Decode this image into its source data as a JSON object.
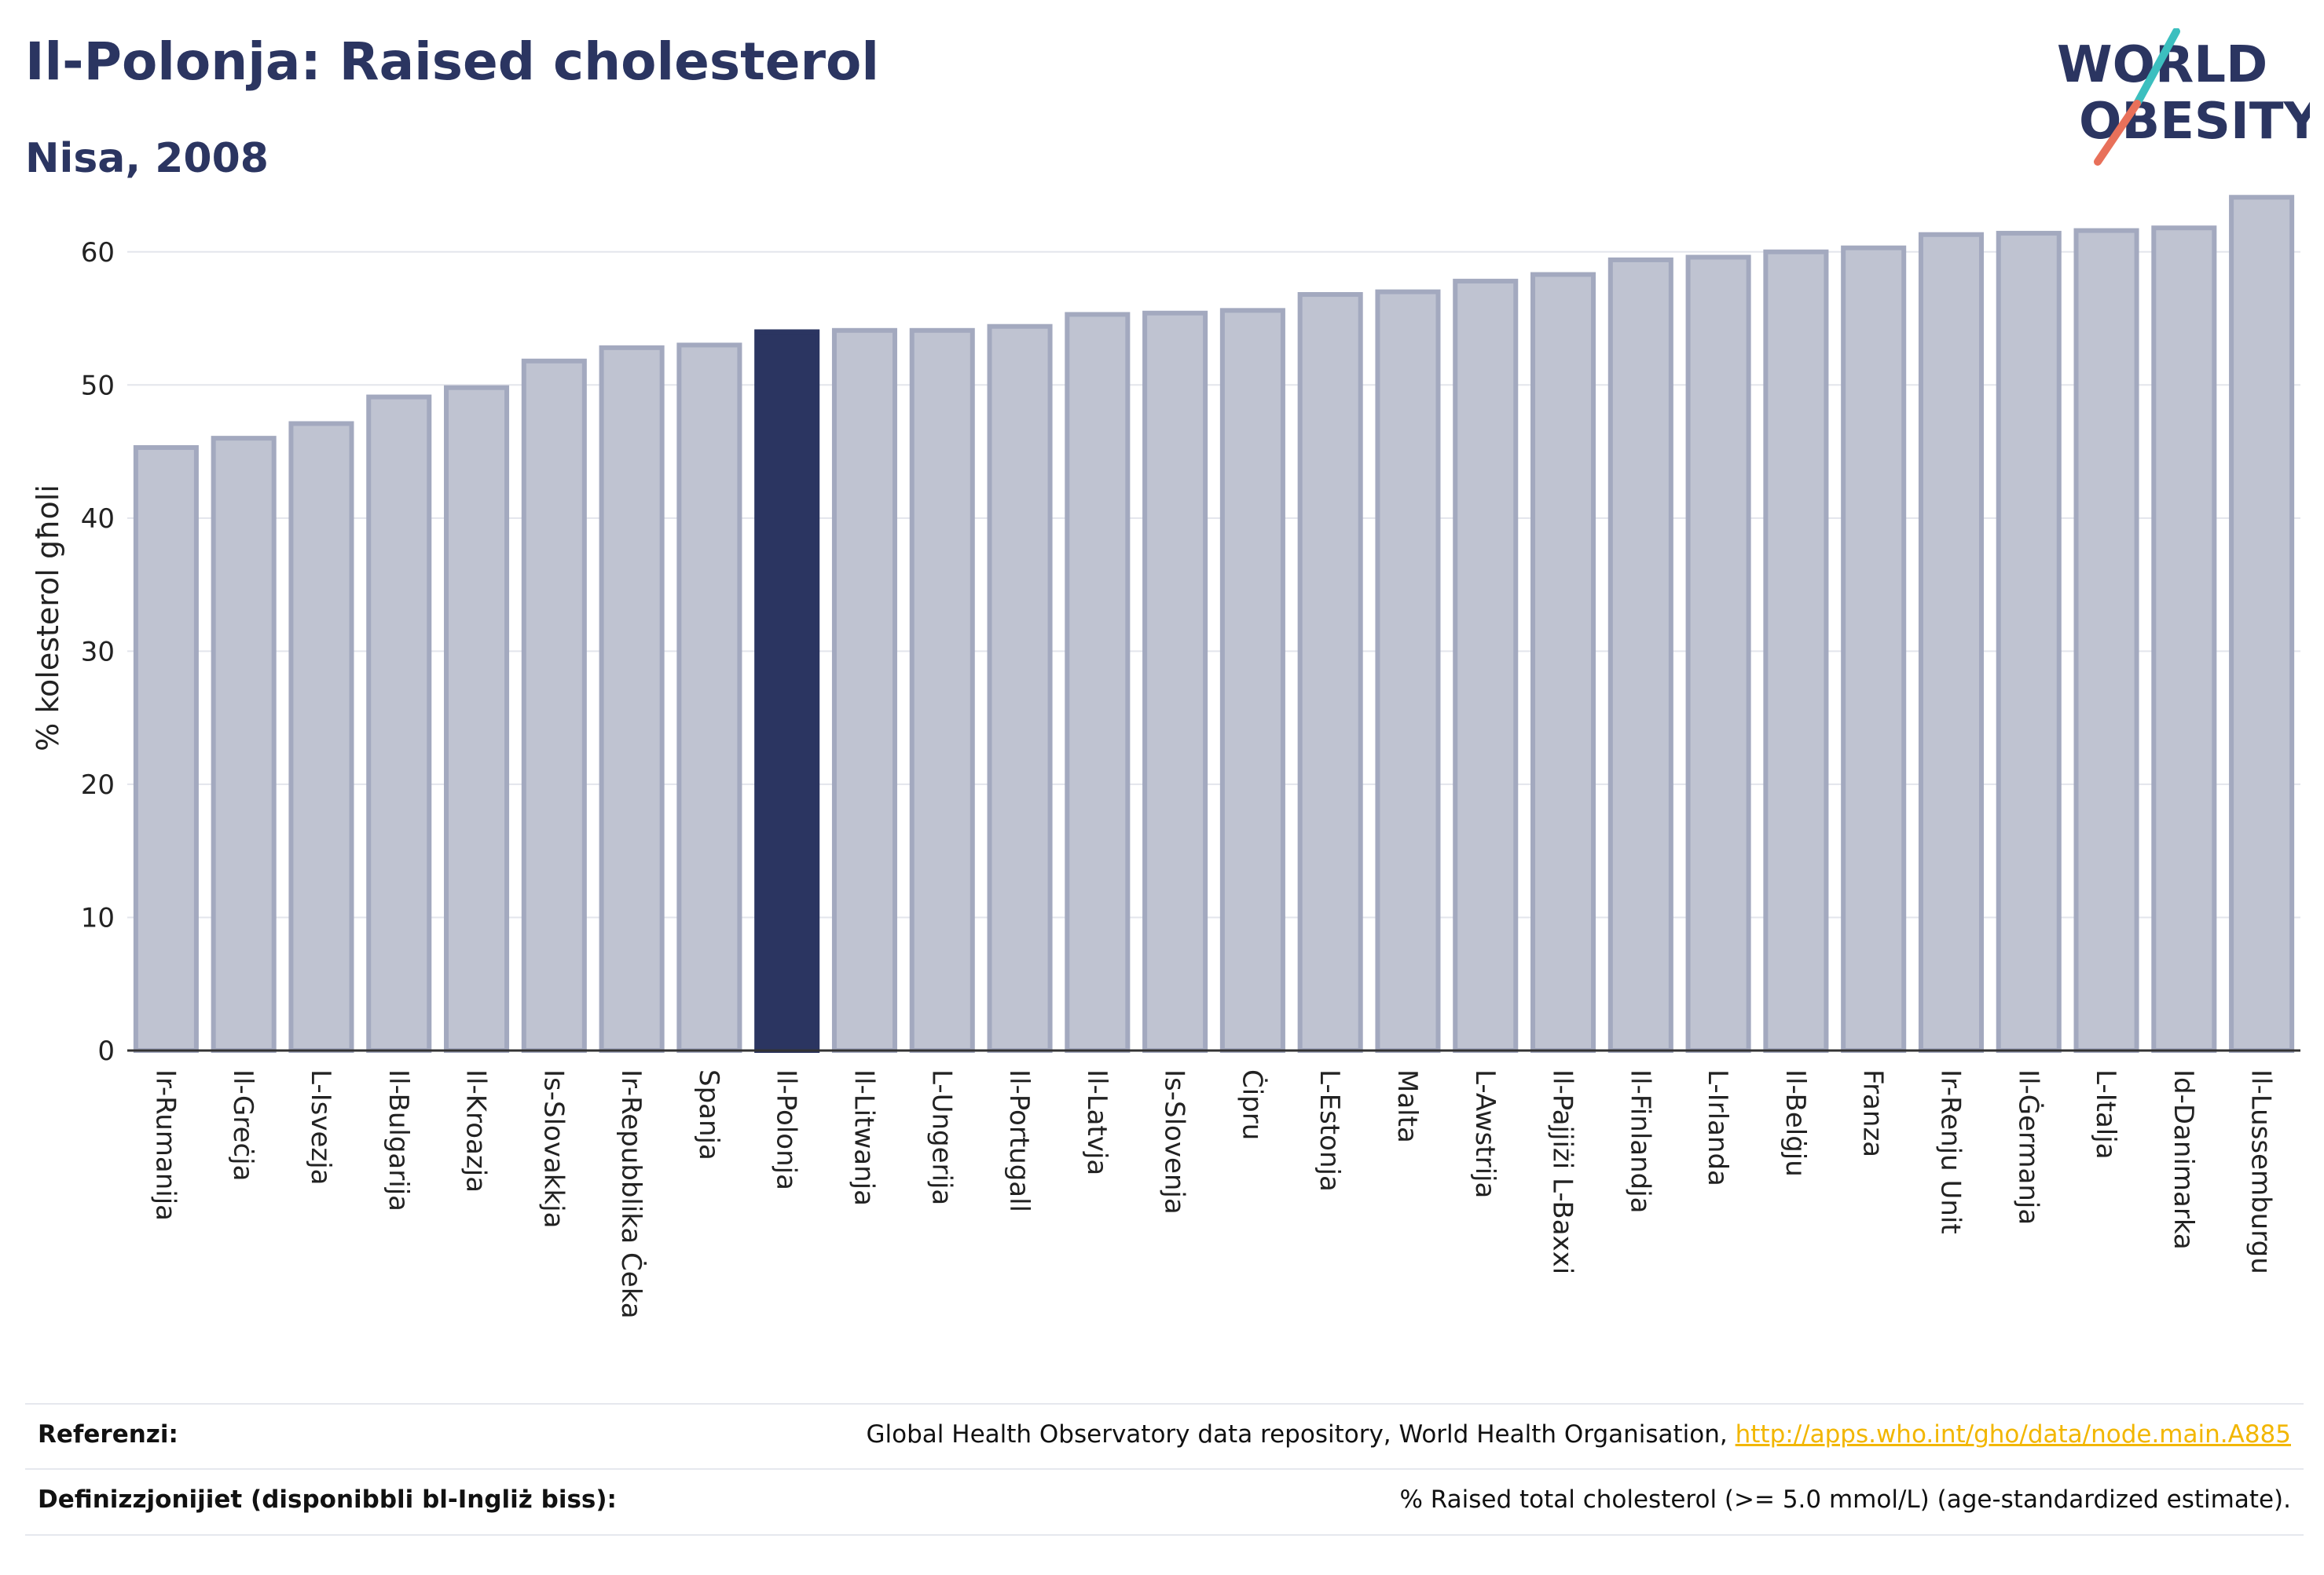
{
  "header": {
    "title": "Il-Polonja: Raised cholesterol",
    "subtitle": "Nisa, 2008"
  },
  "logo": {
    "line1": "WORLD",
    "line2": "OBESITY",
    "colors": {
      "text": "#2b3561",
      "slash_teal": "#3cbfbf",
      "slash_coral": "#e8705a"
    }
  },
  "colors": {
    "bar_default": "#bfc3d1",
    "bar_stroke": "#a3a9bf",
    "bar_highlight": "#2b3561",
    "grid": "#e3e5ec"
  },
  "chart_data": {
    "type": "bar",
    "title": "Il-Polonja: Raised cholesterol",
    "subtitle": "Nisa, 2008",
    "ylabel": "% kolesterol għoli",
    "xlabel": "",
    "ylim": [
      0,
      65
    ],
    "yticks": [
      0,
      10,
      20,
      30,
      40,
      50,
      60
    ],
    "grid": true,
    "highlight": "Il-Polonja",
    "categories": [
      "Ir-Rumanija",
      "Il-Greċja",
      "L-Isvezja",
      "Il-Bulgarija",
      "Il-Kroazja",
      "Is-Slovakkja",
      "Ir-Repubblika Ċeka",
      "Spanja",
      "Il-Polonja",
      "Il-Litwanja",
      "L-Ungerija",
      "Il-Portugall",
      "Il-Latvja",
      "Is-Slovenja",
      "Ċipru",
      "L-Estonja",
      "Malta",
      "L-Awstrija",
      "Il-Pajjiżi L-Baxxi",
      "Il-Finlandja",
      "L-Irlanda",
      "Il-Belġju",
      "Franza",
      "Ir-Renju Unit",
      "Il-Ġermanja",
      "L-Italja",
      "Id-Danimarka",
      "Il-Lussemburgu"
    ],
    "values": [
      45.3,
      46.0,
      47.1,
      49.1,
      49.8,
      51.8,
      52.8,
      53.0,
      54.0,
      54.1,
      54.1,
      54.4,
      55.3,
      55.4,
      55.6,
      56.8,
      57.0,
      57.8,
      58.3,
      59.4,
      59.6,
      60.0,
      60.3,
      61.3,
      61.4,
      61.6,
      61.8,
      64.1
    ]
  },
  "footer": {
    "references_label": "Referenzi:",
    "references_text": "Global Health Observatory data repository, World Health Organisation, ",
    "references_link": "http://apps.who.int/gho/data/node.main.A885",
    "definitions_label": "Definizzjonijiet (disponibbli bl-Ingliż biss):",
    "definitions_text": "% Raised total cholesterol (>= 5.0 mmol/L) (age-standardized estimate)."
  }
}
